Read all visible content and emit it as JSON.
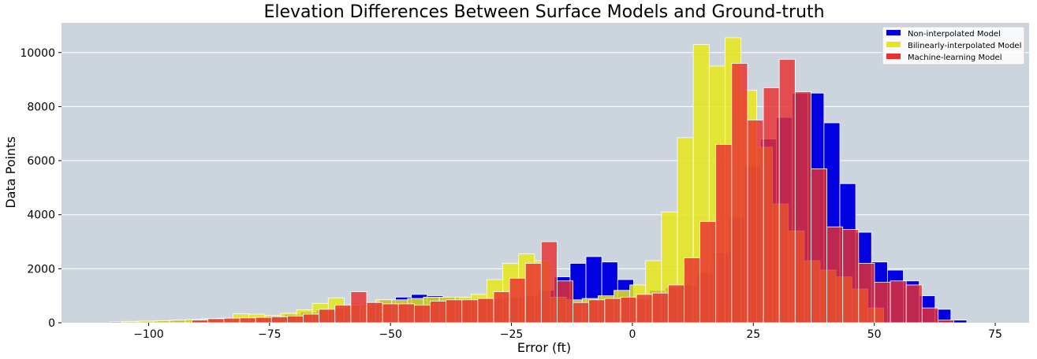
{
  "chart_data": {
    "type": "bar",
    "title": "Elevation Differences Between Surface Models and Ground-truth",
    "xlabel": "Error (ft)",
    "ylabel": "Data Points",
    "xlim": [
      -118,
      82
    ],
    "ylim": [
      0,
      11100
    ],
    "x_ticks": [
      -100,
      -75,
      -50,
      -25,
      0,
      25,
      50,
      75
    ],
    "x_tick_labels": [
      "−100",
      "−75",
      "−50",
      "−25",
      "0",
      "25",
      "50",
      "75"
    ],
    "y_ticks": [
      0,
      2000,
      4000,
      6000,
      8000,
      10000
    ],
    "y_tick_labels": [
      "0",
      "2000",
      "4000",
      "6000",
      "8000",
      "10000"
    ],
    "grid": "horizontal",
    "legend_position": "top-right",
    "colors": {
      "plot_background": "#ccd4de",
      "grid": "#ffffff",
      "bar_edge": "#ffffff"
    },
    "series": [
      {
        "name": "Non-interpolated Model",
        "color": "#0000e0",
        "opacity": 1.0,
        "start": -108,
        "width": 3.28,
        "values": [
          30,
          40,
          50,
          70,
          90,
          110,
          130,
          150,
          170,
          200,
          250,
          320,
          400,
          480,
          550,
          650,
          750,
          850,
          950,
          1050,
          1000,
          950,
          900,
          900,
          900,
          950,
          1000,
          1200,
          1700,
          2200,
          2450,
          2250,
          1600,
          900,
          1200,
          1300,
          1400,
          1850,
          2600,
          3900,
          5800,
          6800,
          7600,
          8500,
          8500,
          7400,
          5150,
          3350,
          2250,
          1950,
          1550,
          1000,
          500,
          100
        ]
      },
      {
        "name": "Bilinearly-interpolated Model",
        "color": "#e6e619",
        "opacity": 0.85,
        "start": -105.5,
        "width": 3.28,
        "values": [
          50,
          60,
          80,
          100,
          120,
          150,
          170,
          330,
          320,
          280,
          350,
          480,
          720,
          920,
          650,
          700,
          850,
          850,
          900,
          950,
          950,
          950,
          1050,
          1600,
          2200,
          2550,
          2300,
          950,
          850,
          900,
          1000,
          1200,
          1400,
          2300,
          4100,
          6850,
          10300,
          9500,
          10550,
          8600,
          6500,
          4400,
          3400,
          2300,
          1950,
          1700,
          1250,
          550
        ]
      },
      {
        "name": "Machine-learning Model",
        "color": "#e83030",
        "opacity": 0.82,
        "start": -91,
        "width": 3.28,
        "values": [
          100,
          150,
          170,
          180,
          200,
          220,
          250,
          320,
          500,
          650,
          1150,
          750,
          700,
          700,
          650,
          800,
          850,
          850,
          900,
          1150,
          1650,
          2200,
          3000,
          1550,
          750,
          850,
          900,
          950,
          1050,
          1100,
          1400,
          2400,
          3750,
          6600,
          9600,
          7500,
          8700,
          9750,
          8550,
          5700,
          3550,
          3450,
          2200,
          1500,
          1550,
          1400,
          550,
          100
        ]
      }
    ]
  }
}
